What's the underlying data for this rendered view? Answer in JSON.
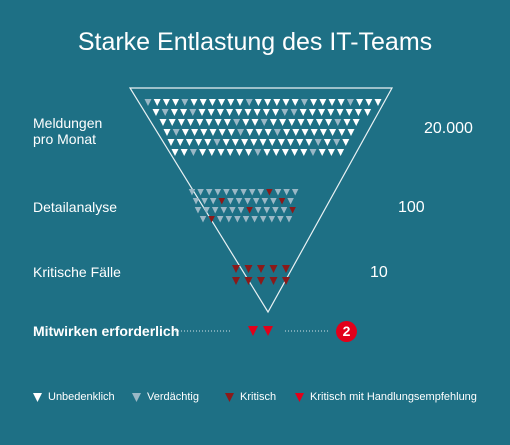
{
  "title": "Starke Entlastung des IT-Teams",
  "colors": {
    "background": "#1e7085",
    "unbedenklich": "#ffffff",
    "verdaechtig": "#9ab8c6",
    "kritisch": "#8b1a1a",
    "kritisch_handlung": "#e2001a",
    "funnel_outline": "#ffffff"
  },
  "rows": [
    {
      "label_lines": [
        "Meldungen",
        "pro Monat"
      ],
      "value": "20.000"
    },
    {
      "label_lines": [
        "Detailanalyse"
      ],
      "value": "100"
    },
    {
      "label_lines": [
        "Kritische Fälle"
      ],
      "value": "10"
    },
    {
      "label_lines": [
        "Mitwirken erforderlich"
      ],
      "value": "2"
    }
  ],
  "legend": [
    {
      "icon": "triangle-down-white-icon",
      "label": "Unbedenklich"
    },
    {
      "icon": "triangle-down-grey-icon",
      "label": "Verdächtig"
    },
    {
      "icon": "triangle-down-darkred-icon",
      "label": "Kritisch"
    },
    {
      "icon": "triangle-down-red-icon",
      "label": "Kritisch mit Handlungsempfehlung"
    }
  ]
}
